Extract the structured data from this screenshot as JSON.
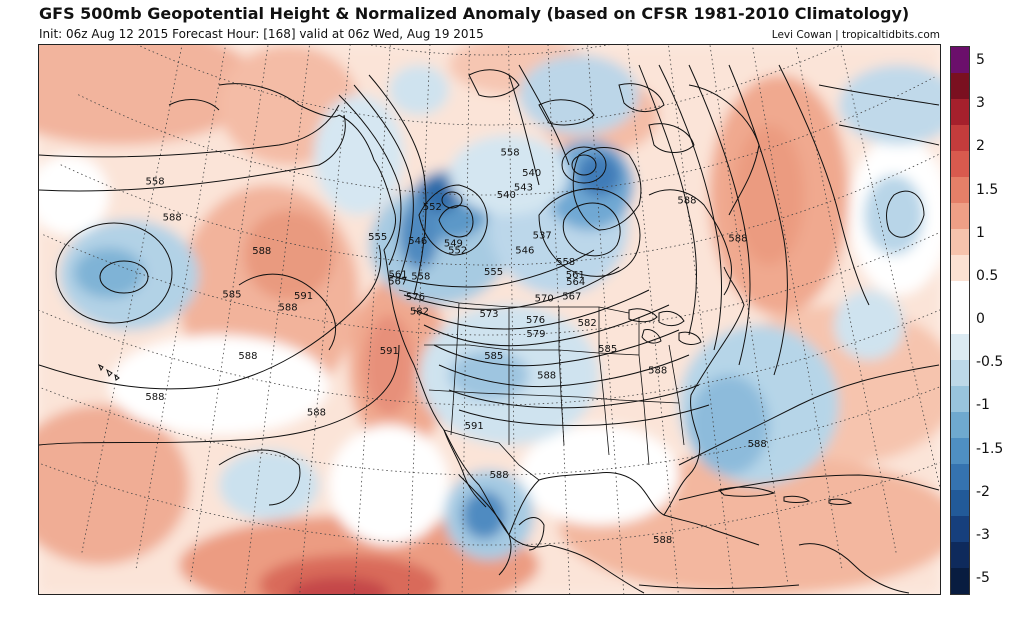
{
  "header": {
    "title": "GFS 500mb Geopotential Height & Normalized Anomaly (based on CFSR 1981-2010 Climatology)",
    "subtitle": "Init: 06z Aug 12 2015   Forecast Hour: [168]   valid at 06z Wed, Aug 19 2015",
    "credit": "Levi Cowan | tropicaltidbits.com"
  },
  "colorbar": {
    "labels": [
      "5",
      "3",
      "2",
      "1.5",
      "1",
      "0.5",
      "0",
      "-0.5",
      "-1",
      "-1.5",
      "-2",
      "-3",
      "-5"
    ],
    "colors": [
      "#6b0f6b",
      "#7a1020",
      "#a5202c",
      "#c43c3c",
      "#d85a4e",
      "#e57f68",
      "#ef9f86",
      "#f6c3ad",
      "#fbe1d3",
      "#ffffff",
      "#ffffff",
      "#dcebf3",
      "#bdd8e8",
      "#98c4dd",
      "#6fa9cf",
      "#4f8fc2",
      "#3573b0",
      "#225a98",
      "#163f7c",
      "#0e2a5c",
      "#081c40"
    ]
  },
  "contour_labels": [
    {
      "text": "558",
      "lon": -100,
      "lat": 66
    },
    {
      "text": "552",
      "lon": -118,
      "lat": 58
    },
    {
      "text": "555",
      "lon": -130,
      "lat": 53
    },
    {
      "text": "546",
      "lon": -121,
      "lat": 53
    },
    {
      "text": "549",
      "lon": -113,
      "lat": 53
    },
    {
      "text": "552",
      "lon": -112,
      "lat": 52
    },
    {
      "text": "540",
      "lon": -95,
      "lat": 63
    },
    {
      "text": "540",
      "lon": -101,
      "lat": 60
    },
    {
      "text": "543",
      "lon": -97,
      "lat": 61
    },
    {
      "text": "537",
      "lon": -93,
      "lat": 54
    },
    {
      "text": "546",
      "lon": -97,
      "lat": 52
    },
    {
      "text": "555",
      "lon": -104,
      "lat": 49
    },
    {
      "text": "558",
      "lon": -88,
      "lat": 50
    },
    {
      "text": "561",
      "lon": -86,
      "lat": 48
    },
    {
      "text": "564",
      "lon": -86,
      "lat": 47
    },
    {
      "text": "567",
      "lon": -87,
      "lat": 45
    },
    {
      "text": "570",
      "lon": -93,
      "lat": 45
    },
    {
      "text": "573",
      "lon": -105,
      "lat": 43
    },
    {
      "text": "576",
      "lon": -95,
      "lat": 42
    },
    {
      "text": "579",
      "lon": -95,
      "lat": 40
    },
    {
      "text": "582",
      "lon": -84,
      "lat": 41
    },
    {
      "text": "585",
      "lon": -80,
      "lat": 37
    },
    {
      "text": "585",
      "lon": -104,
      "lat": 37
    },
    {
      "text": "588",
      "lon": -93,
      "lat": 34
    },
    {
      "text": "561",
      "lon": -125,
      "lat": 48
    },
    {
      "text": "567",
      "lon": -125,
      "lat": 47
    },
    {
      "text": "558",
      "lon": -120,
      "lat": 48
    },
    {
      "text": "576",
      "lon": -121,
      "lat": 45
    },
    {
      "text": "582",
      "lon": -120,
      "lat": 43
    },
    {
      "text": "591",
      "lon": -126,
      "lat": 37
    },
    {
      "text": "591",
      "lon": -108,
      "lat": 27
    },
    {
      "text": "588",
      "lon": -103,
      "lat": 20
    },
    {
      "text": "591",
      "lon": -145,
      "lat": 43
    },
    {
      "text": "588",
      "lon": -148,
      "lat": 41
    },
    {
      "text": "585",
      "lon": -160,
      "lat": 41
    },
    {
      "text": "588",
      "lon": -155,
      "lat": 33
    },
    {
      "text": "588",
      "lon": -155,
      "lat": 48
    },
    {
      "text": "588",
      "lon": -175,
      "lat": 49
    },
    {
      "text": "588",
      "lon": -172,
      "lat": 24
    },
    {
      "text": "588",
      "lon": -140,
      "lat": 27
    },
    {
      "text": "588",
      "lon": -60,
      "lat": 56
    },
    {
      "text": "588",
      "lon": -50,
      "lat": 49
    },
    {
      "text": "588",
      "lon": -70,
      "lat": 33
    },
    {
      "text": "588",
      "lon": -52,
      "lat": 20
    },
    {
      "text": "588",
      "lon": -72,
      "lat": 9
    },
    {
      "text": "558",
      "lon": -180,
      "lat": 53
    }
  ]
}
